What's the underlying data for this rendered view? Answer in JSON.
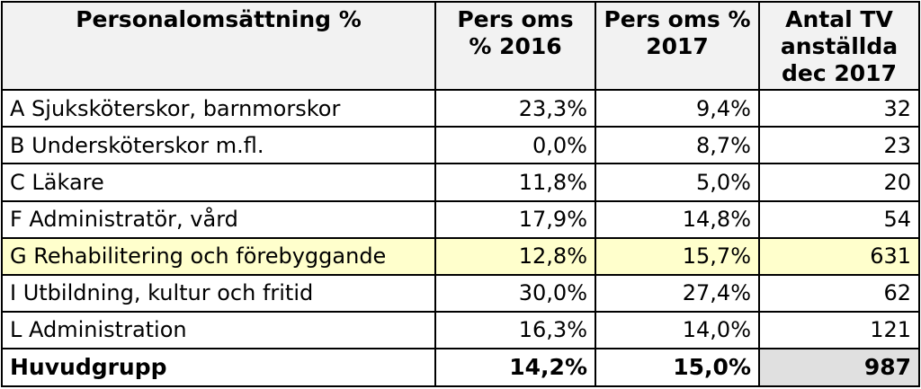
{
  "headers": [
    "Personalomsättning %",
    "Pers oms % 2016",
    "Pers oms % 2017",
    "Antal TV anställda dec 2017"
  ],
  "rows": [
    {
      "label": "A Sjuksköterskor, barnmorskor",
      "pct2016": "23,3%",
      "pct2017": "9,4%",
      "count": "32"
    },
    {
      "label": "B Undersköterskor m.fl.",
      "pct2016": "0,0%",
      "pct2017": "8,7%",
      "count": "23"
    },
    {
      "label": "C Läkare",
      "pct2016": "11,8%",
      "pct2017": "5,0%",
      "count": "20"
    },
    {
      "label": "F Administratör, vård",
      "pct2016": "17,9%",
      "pct2017": "14,8%",
      "count": "54"
    },
    {
      "label": "G Rehabilitering och förebyggande",
      "pct2016": "12,8%",
      "pct2017": "15,7%",
      "count": "631"
    },
    {
      "label": "I Utbildning, kultur och fritid",
      "pct2016": "30,0%",
      "pct2017": "27,4%",
      "count": "62"
    },
    {
      "label": "L Administration",
      "pct2016": "16,3%",
      "pct2017": "14,0%",
      "count": "121"
    }
  ],
  "total": {
    "label": "Huvudgrupp",
    "pct2016": "14,2%",
    "pct2017": "15,0%",
    "count": "987"
  },
  "colors": {
    "highlight_row": "#ffffcc",
    "header_background": "#f2f2f2",
    "total_count_background": "#e0e0e0"
  }
}
